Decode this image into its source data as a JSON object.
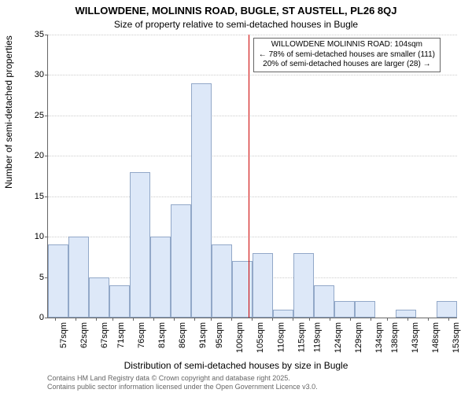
{
  "title_line1": "WILLOWDENE, MOLINNIS ROAD, BUGLE, ST AUSTELL, PL26 8QJ",
  "title_line2": "Size of property relative to semi-detached houses in Bugle",
  "ylabel": "Number of semi-detached properties",
  "xlabel": "Distribution of semi-detached houses by size in Bugle",
  "attribution_line1": "Contains HM Land Registry data © Crown copyright and database right 2025.",
  "attribution_line2": "Contains public sector information licensed under the Open Government Licence v3.0.",
  "annotation": {
    "line1": "WILLOWDENE MOLINNIS ROAD: 104sqm",
    "line2": "← 78% of semi-detached houses are smaller (111)",
    "line3": "20% of semi-detached houses are larger (28) →"
  },
  "chart": {
    "type": "histogram",
    "x_min": 55,
    "x_max": 155,
    "y_min": 0,
    "y_max": 35,
    "y_ticks": [
      0,
      5,
      10,
      15,
      20,
      25,
      30,
      35
    ],
    "x_ticks": [
      57,
      62,
      67,
      71,
      76,
      81,
      86,
      91,
      95,
      100,
      105,
      110,
      115,
      119,
      124,
      129,
      134,
      138,
      143,
      148,
      153
    ],
    "x_tick_suffix": "sqm",
    "marker_x": 104,
    "bars": [
      {
        "x0": 55,
        "x1": 60,
        "y": 9
      },
      {
        "x0": 60,
        "x1": 65,
        "y": 10
      },
      {
        "x0": 65,
        "x1": 70,
        "y": 5
      },
      {
        "x0": 70,
        "x1": 75,
        "y": 4
      },
      {
        "x0": 75,
        "x1": 80,
        "y": 18
      },
      {
        "x0": 80,
        "x1": 85,
        "y": 10
      },
      {
        "x0": 85,
        "x1": 90,
        "y": 14
      },
      {
        "x0": 90,
        "x1": 95,
        "y": 29
      },
      {
        "x0": 95,
        "x1": 100,
        "y": 9
      },
      {
        "x0": 100,
        "x1": 105,
        "y": 7
      },
      {
        "x0": 105,
        "x1": 110,
        "y": 8
      },
      {
        "x0": 110,
        "x1": 115,
        "y": 1
      },
      {
        "x0": 115,
        "x1": 120,
        "y": 8
      },
      {
        "x0": 120,
        "x1": 125,
        "y": 4
      },
      {
        "x0": 125,
        "x1": 130,
        "y": 2
      },
      {
        "x0": 130,
        "x1": 135,
        "y": 2
      },
      {
        "x0": 135,
        "x1": 140,
        "y": 0
      },
      {
        "x0": 140,
        "x1": 145,
        "y": 1
      },
      {
        "x0": 145,
        "x1": 150,
        "y": 0
      },
      {
        "x0": 150,
        "x1": 155,
        "y": 2
      }
    ],
    "bar_fill": "#dde8f8",
    "bar_stroke": "#92a8c8",
    "grid_color": "#cccccc",
    "marker_color": "#cc0000",
    "background": "#ffffff",
    "title_fontsize": 13,
    "subtitle_fontsize": 12,
    "axis_label_fontsize": 12,
    "tick_fontsize": 11,
    "annotation_fontsize": 10,
    "attribution_fontsize": 9
  }
}
